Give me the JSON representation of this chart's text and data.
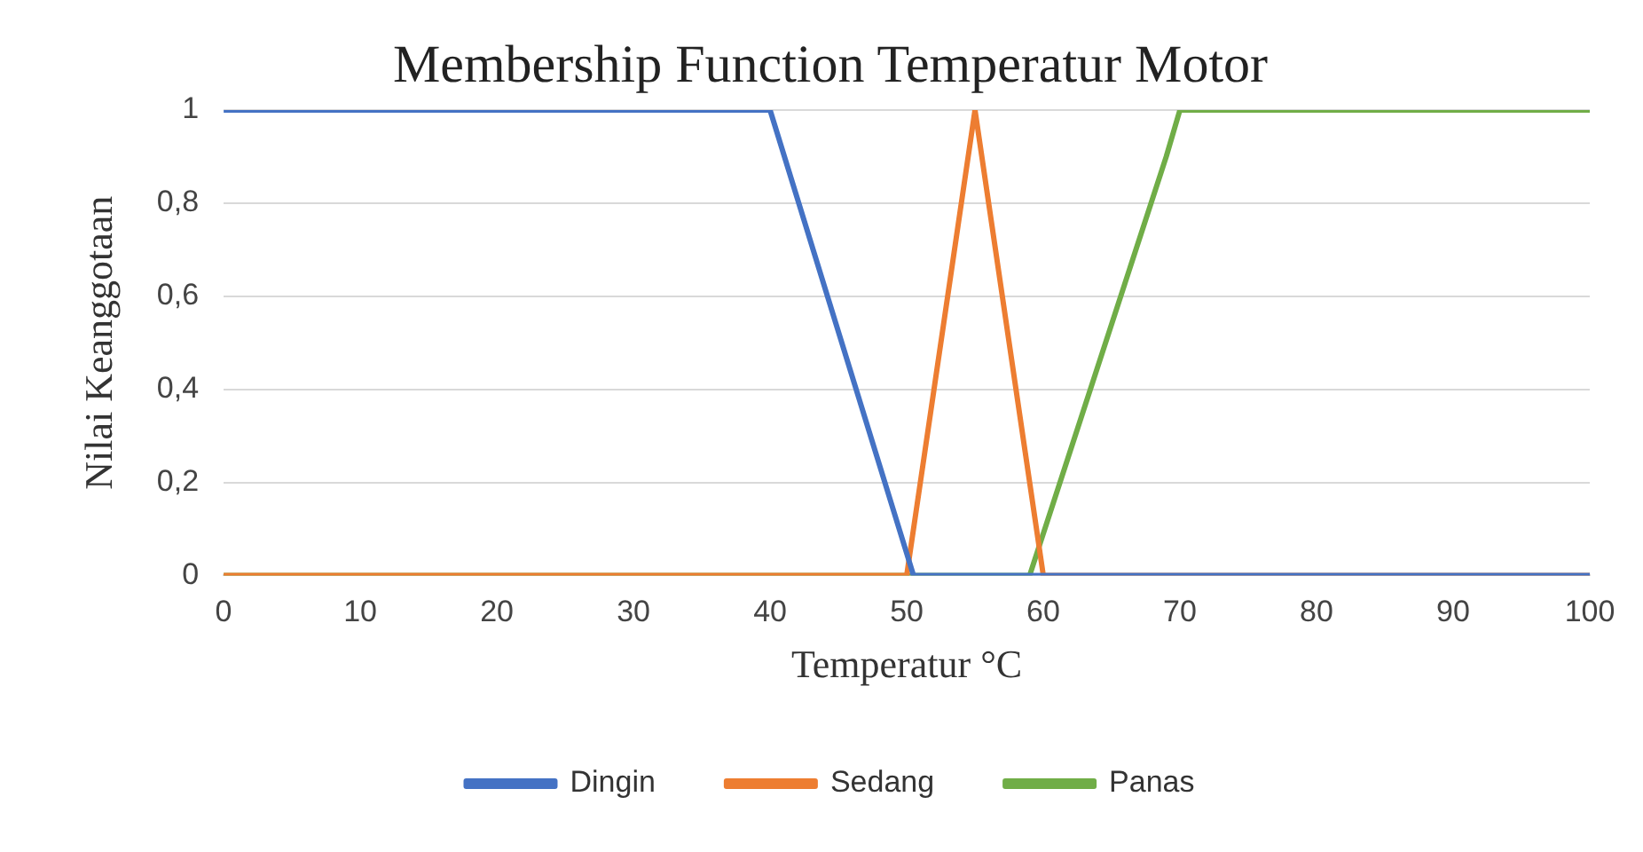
{
  "chart_data": {
    "type": "line",
    "title": "Membership Function Temperatur Motor",
    "xlabel": "Temperatur °C",
    "ylabel": "Nilai Keanggotaan",
    "xlim": [
      0,
      100
    ],
    "xticks": [
      0,
      10,
      20,
      30,
      40,
      50,
      60,
      70,
      80,
      90,
      100
    ],
    "ylim": [
      0,
      1
    ],
    "yticks": [
      0,
      {
        "value": 0.2,
        "label": "0,2"
      },
      {
        "value": 0.4,
        "label": "0,4"
      },
      {
        "value": 0.6,
        "label": "0,6"
      },
      {
        "value": 0.8,
        "label": "0,8"
      },
      1
    ],
    "grid": "y",
    "legend": "bottom",
    "marker": "none",
    "line_style": "solid",
    "series": [
      {
        "name": "Dingin",
        "color": "#4472c4",
        "x": [
          0,
          40,
          50.5,
          100
        ],
        "values": [
          1,
          1,
          0,
          0
        ]
      },
      {
        "name": "Sedang",
        "color": "#ed7d31",
        "x": [
          0,
          50,
          55,
          60,
          100
        ],
        "values": [
          0,
          0,
          1,
          0,
          0
        ]
      },
      {
        "name": "Panas",
        "color": "#70ad47",
        "x": [
          0,
          59,
          69,
          70,
          100
        ],
        "values": [
          0,
          0,
          0.9,
          1,
          1
        ]
      }
    ]
  }
}
